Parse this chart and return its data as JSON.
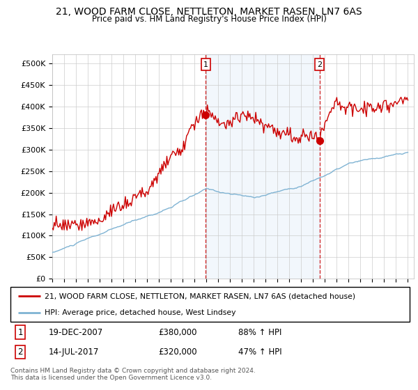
{
  "title": "21, WOOD FARM CLOSE, NETTLETON, MARKET RASEN, LN7 6AS",
  "subtitle": "Price paid vs. HM Land Registry's House Price Index (HPI)",
  "ylabel_ticks": [
    "£0",
    "£50K",
    "£100K",
    "£150K",
    "£200K",
    "£250K",
    "£300K",
    "£350K",
    "£400K",
    "£450K",
    "£500K"
  ],
  "ytick_values": [
    0,
    50000,
    100000,
    150000,
    200000,
    250000,
    300000,
    350000,
    400000,
    450000,
    500000
  ],
  "ylim": [
    0,
    520000
  ],
  "legend_line1": "21, WOOD FARM CLOSE, NETTLETON, MARKET RASEN, LN7 6AS (detached house)",
  "legend_line2": "HPI: Average price, detached house, West Lindsey",
  "sale1_date": "19-DEC-2007",
  "sale1_price": "£380,000",
  "sale1_hpi": "88% ↑ HPI",
  "sale2_date": "14-JUL-2017",
  "sale2_price": "£320,000",
  "sale2_hpi": "47% ↑ HPI",
  "footer": "Contains HM Land Registry data © Crown copyright and database right 2024.\nThis data is licensed under the Open Government Licence v3.0.",
  "red_line_color": "#cc0000",
  "blue_line_color": "#7fb3d3",
  "vline_color": "#cc0000",
  "shade_color": "#ddeeff",
  "background_color": "#ffffff",
  "grid_color": "#cccccc",
  "sale1_x": 2007.958,
  "sale1_y": 380000,
  "sale2_x": 2017.542,
  "sale2_y": 320000,
  "xlim_left": 1995,
  "xlim_right": 2025.5
}
